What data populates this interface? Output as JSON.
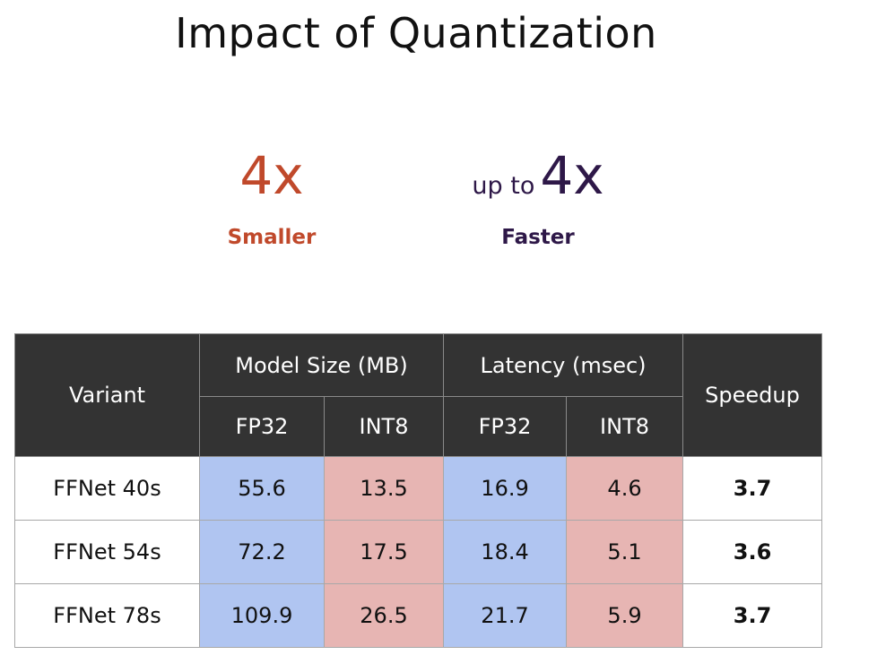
{
  "title": "Impact of Quantization",
  "stats": {
    "smaller": {
      "value": "4x",
      "label": "Smaller",
      "color": "#c0492b"
    },
    "faster": {
      "prefix": "up to",
      "value": "4x",
      "label": "Faster",
      "color": "#2e1848"
    }
  },
  "table": {
    "headers": {
      "variant": "Variant",
      "model_size": "Model Size (MB)",
      "latency": "Latency (msec)",
      "speedup": "Speedup",
      "fp32": "FP32",
      "int8": "INT8"
    },
    "rows": [
      {
        "variant": "FFNet 40s",
        "size_fp32": "55.6",
        "size_int8": "13.5",
        "lat_fp32": "16.9",
        "lat_int8": "4.6",
        "speedup": "3.7"
      },
      {
        "variant": "FFNet 54s",
        "size_fp32": "72.2",
        "size_int8": "17.5",
        "lat_fp32": "18.4",
        "lat_int8": "5.1",
        "speedup": "3.6"
      },
      {
        "variant": "FFNet 78s",
        "size_fp32": "109.9",
        "size_int8": "26.5",
        "lat_fp32": "21.7",
        "lat_int8": "5.9",
        "speedup": "3.7"
      }
    ],
    "colors": {
      "header_bg": "#333333",
      "fp32_bg": "#b0c5f1",
      "int8_bg": "#e7b5b3",
      "speedup_text": "#2d5a12"
    }
  }
}
